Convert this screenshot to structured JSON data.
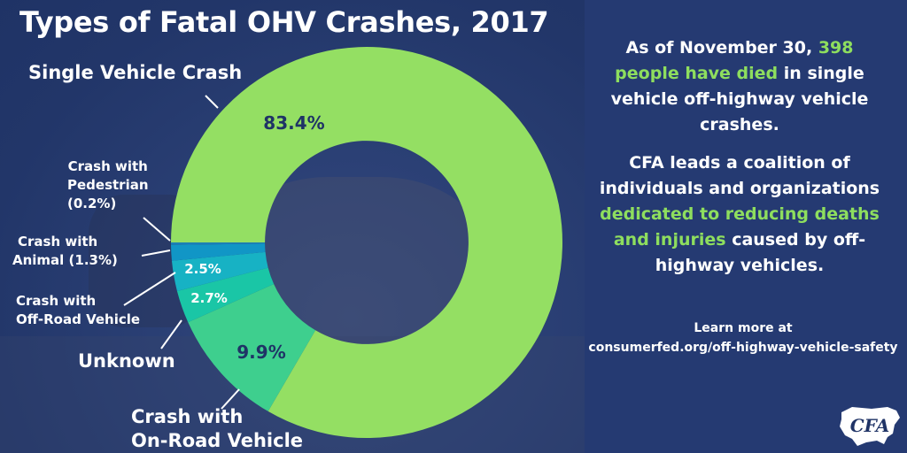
{
  "title": "Types of Fatal OHV Crashes, 2017",
  "colors": {
    "slice_main": "#94df63",
    "slice_onroad": "#3ecf8e",
    "slice_unknown": "#1ac6a6",
    "slice_offroad": "#17b2c4",
    "slice_animal": "#1196c6",
    "slice_ped": "#1b7fb6",
    "highlight": "#8ede5e",
    "panel": "#253a72"
  },
  "chart_data": {
    "type": "pie",
    "categories": [
      "Single Vehicle Crash",
      "Crash with On-Road Vehicle",
      "Unknown",
      "Crash with Off-Road Vehicle",
      "Crash with Animal",
      "Crash with Pedestrian"
    ],
    "values": [
      83.4,
      9.9,
      2.7,
      2.5,
      1.3,
      0.2
    ],
    "value_labels": [
      "83.4%",
      "9.9%",
      "2.7%",
      "2.5%",
      "",
      ""
    ],
    "category_labels": {
      "single": "Single Vehicle Crash",
      "onroad_1": "Crash with",
      "onroad_2": "On-Road Vehicle",
      "unknown": "Unknown",
      "offroad_1": "Crash with",
      "offroad_2": "Off-Road Vehicle",
      "animal_1": "Crash with",
      "animal_2": "Animal (1.3%)",
      "ped_1": "Crash with",
      "ped_2": "Pedestrian",
      "ped_3": "(0.2%)"
    },
    "hole": 0.52,
    "start_angle": "9 o'clock, clockwise"
  },
  "panel": {
    "p1_a": "As of November 30,",
    "p1_num": "398",
    "p1_hl": "people have died",
    "p1_b": "in single vehicle off-highway vehicle crashes.",
    "p2_a": "CFA leads a coalition of individuals and organizations",
    "p2_hl": "dedicated to reducing deaths and injuries",
    "p2_b": "caused by off-highway vehicles.",
    "learn_1": "Learn more at",
    "learn_2": "consumerfed.org/off-highway-vehicle-safety"
  },
  "logo_text": "CFA"
}
